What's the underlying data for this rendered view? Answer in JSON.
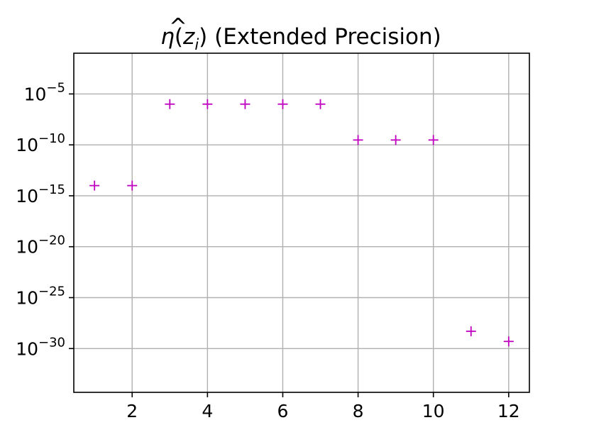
{
  "chart_data": {
    "type": "scatter",
    "title": "η(ẑᵢ) (Extended Precision)",
    "title_parts": {
      "eta": "η",
      "open": "(",
      "z": "z",
      "hat": "^",
      "sub": "i",
      "close": ")",
      "rest": " (Extended Precision)"
    },
    "xlabel": "",
    "ylabel": "",
    "x_scale": "linear",
    "y_scale": "log",
    "xlim": [
      0.45,
      12.55
    ],
    "ylim_exp": [
      -34.3,
      -1.0
    ],
    "x_ticks": [
      2,
      4,
      6,
      8,
      10,
      12
    ],
    "x_tick_labels": [
      "2",
      "4",
      "6",
      "8",
      "10",
      "12"
    ],
    "y_tick_exponents": [
      -5,
      -10,
      -15,
      -20,
      -25,
      -30
    ],
    "y_tick_base": "10",
    "y_tick_exp_labels": [
      "−5",
      "−10",
      "−15",
      "−20",
      "−25",
      "−30"
    ],
    "grid": true,
    "marker": "+",
    "color": "#bf00bf",
    "series": [
      {
        "x": [
          1,
          2,
          3,
          4,
          5,
          6,
          7,
          8,
          9,
          10,
          11,
          12
        ],
        "y": [
          1e-14,
          1e-14,
          1e-06,
          1e-06,
          1e-06,
          1e-06,
          1e-06,
          3e-10,
          3e-10,
          3e-10,
          5e-29,
          5e-30
        ]
      }
    ]
  }
}
